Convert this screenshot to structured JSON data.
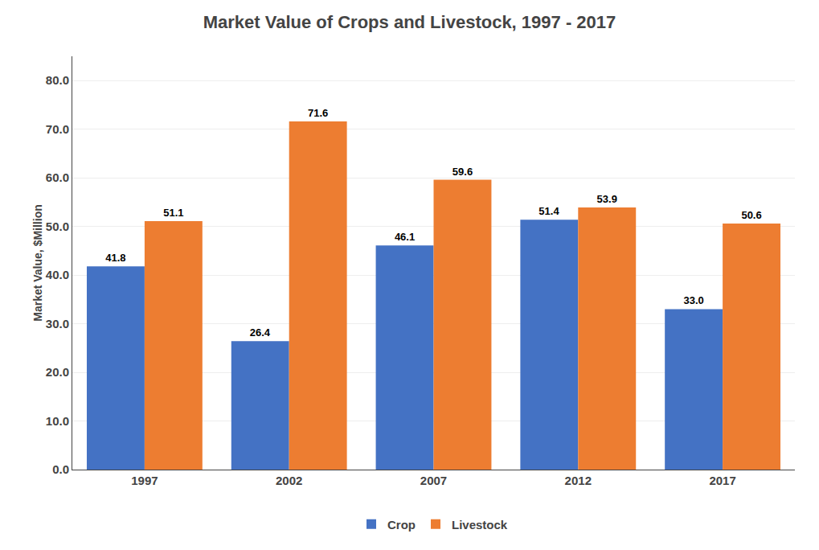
{
  "chart_data": {
    "type": "bar",
    "title": "Market Value of Crops and Livestock, 1997 - 2017",
    "ylabel": "Market Value, $Million",
    "categories": [
      "1997",
      "2002",
      "2007",
      "2012",
      "2017"
    ],
    "series": [
      {
        "name": "Crop",
        "color": "#4472C4",
        "values": [
          41.8,
          26.4,
          46.1,
          51.4,
          33.0
        ],
        "value_labels": [
          "41.8",
          "26.4",
          "46.1",
          "51.4",
          "33.0"
        ]
      },
      {
        "name": "Livestock",
        "color": "#ED7D31",
        "values": [
          51.1,
          71.6,
          59.6,
          53.9,
          50.6
        ],
        "value_labels": [
          "51.1",
          "71.6",
          "59.6",
          "53.9",
          "50.6"
        ]
      }
    ],
    "ylim": [
      0,
      85
    ],
    "yticks": [
      {
        "value": 0,
        "label": "0.0"
      },
      {
        "value": 10,
        "label": "10.0"
      },
      {
        "value": 20,
        "label": "20.0"
      },
      {
        "value": 30,
        "label": "30.0"
      },
      {
        "value": 40,
        "label": "40.0"
      },
      {
        "value": 50,
        "label": "50.0"
      },
      {
        "value": 60,
        "label": "60.0"
      },
      {
        "value": 70,
        "label": "70.0"
      },
      {
        "value": 80,
        "label": "80.0"
      }
    ],
    "grid": true,
    "legend": "bottom",
    "data_labels": true
  }
}
